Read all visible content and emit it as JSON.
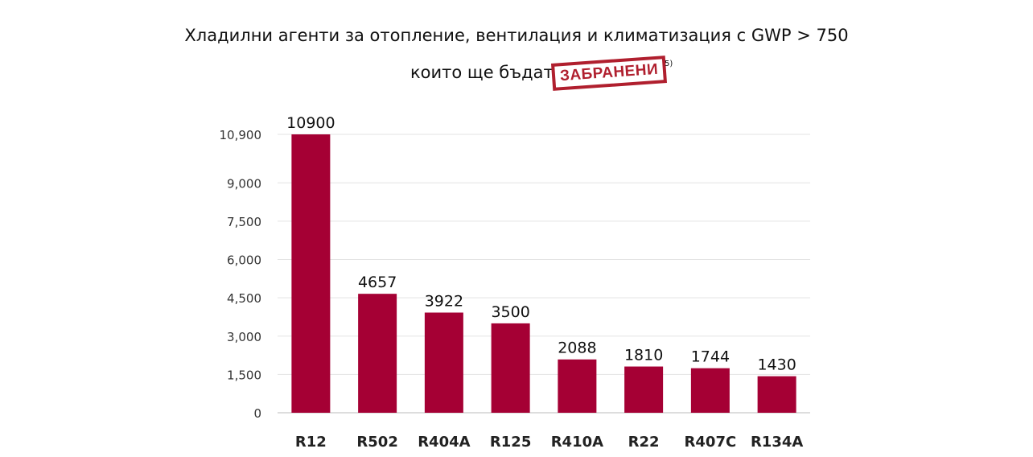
{
  "title_line1": "Хладилни агенти за отопление, вентилация и климатизация с GWP > 750",
  "title_line2": "които ще бъдат",
  "stamp_text": "ЗАБРАНЕНИ",
  "footnote": "5)",
  "chart_data": {
    "type": "bar",
    "categories": [
      "R12",
      "R502",
      "R404A",
      "R125",
      "R410A",
      "R22",
      "R407C",
      "R134A"
    ],
    "values": [
      10900,
      4657,
      3922,
      3500,
      2088,
      1810,
      1744,
      1430
    ],
    "data_labels": [
      "10900",
      "4657",
      "3922",
      "3500",
      "2088",
      "1810",
      "1744",
      "1430"
    ],
    "y_ticks": [
      0,
      1500,
      3000,
      4500,
      6000,
      7500,
      9000,
      10900
    ],
    "y_tick_labels": [
      "0",
      "1,500",
      "3,000",
      "4,500",
      "6,000",
      "7,500",
      "9,000",
      "10,900"
    ],
    "ylim": [
      0,
      10900
    ],
    "grid": true,
    "bar_color": "#a50034",
    "xlabel": "",
    "ylabel": ""
  }
}
